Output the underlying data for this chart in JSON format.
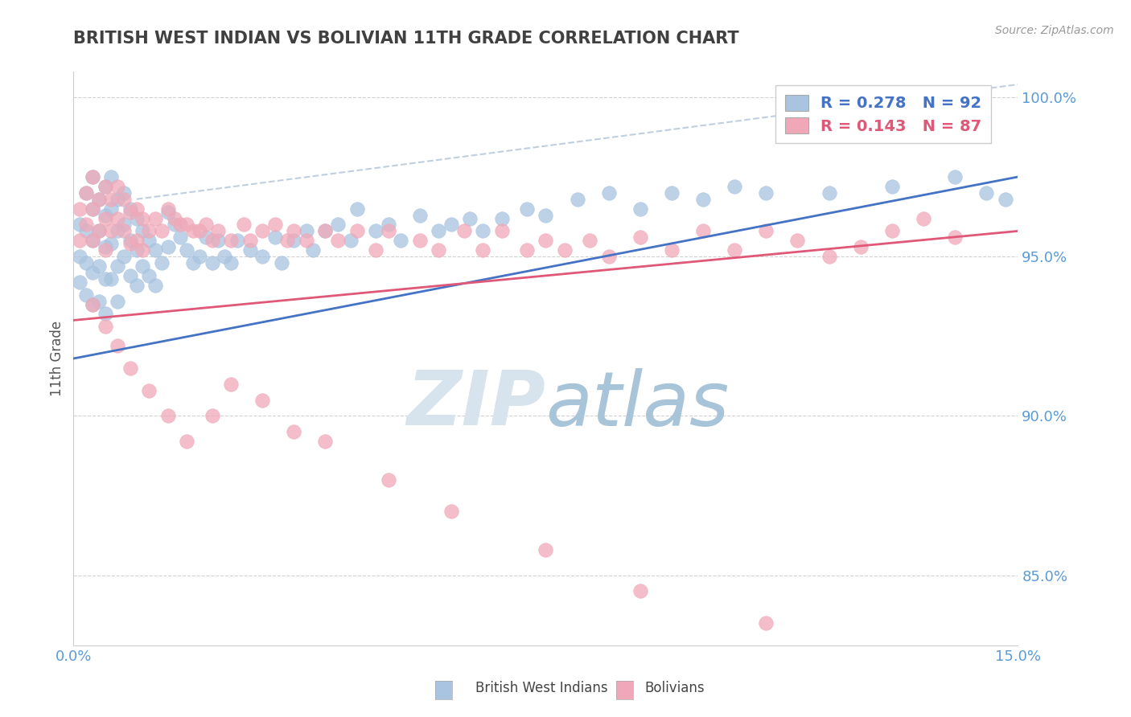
{
  "title": "BRITISH WEST INDIAN VS BOLIVIAN 11TH GRADE CORRELATION CHART",
  "source_text": "Source: ZipAtlas.com",
  "ylabel": "11th Grade",
  "xmin": 0.0,
  "xmax": 0.15,
  "ymin": 0.828,
  "ymax": 1.008,
  "yticks": [
    0.85,
    0.9,
    0.95,
    1.0
  ],
  "ytick_labels": [
    "85.0%",
    "90.0%",
    "95.0%",
    "100.0%"
  ],
  "xticks": [
    0.0,
    0.015,
    0.03,
    0.045,
    0.06,
    0.075,
    0.09,
    0.105,
    0.12,
    0.135,
    0.15
  ],
  "xtick_labels": [
    "0.0%",
    "",
    "",
    "",
    "",
    "",
    "",
    "",
    "",
    "",
    "15.0%"
  ],
  "blue_R": 0.278,
  "blue_N": 92,
  "pink_R": 0.143,
  "pink_N": 87,
  "blue_color": "#a8c4e0",
  "pink_color": "#f0a8b8",
  "blue_line_color": "#4472c4",
  "pink_line_color": "#e05878",
  "ref_line_color": "#b0c4d8",
  "axis_color": "#5b9bd5",
  "title_color": "#404040",
  "watermark_color": "#dce8f0",
  "legend_label_blue": "British West Indians",
  "legend_label_pink": "Bolivians",
  "blue_line_x": [
    0.0,
    0.15
  ],
  "blue_line_y": [
    0.918,
    0.975
  ],
  "pink_line_x": [
    0.0,
    0.15
  ],
  "pink_line_y": [
    0.93,
    0.958
  ],
  "ref_line_x": [
    0.01,
    0.15
  ],
  "ref_line_y": [
    0.968,
    1.004
  ],
  "blue_scatter_x": [
    0.001,
    0.001,
    0.001,
    0.002,
    0.002,
    0.002,
    0.002,
    0.003,
    0.003,
    0.003,
    0.003,
    0.003,
    0.004,
    0.004,
    0.004,
    0.004,
    0.005,
    0.005,
    0.005,
    0.005,
    0.005,
    0.006,
    0.006,
    0.006,
    0.006,
    0.007,
    0.007,
    0.007,
    0.007,
    0.008,
    0.008,
    0.008,
    0.009,
    0.009,
    0.009,
    0.01,
    0.01,
    0.01,
    0.011,
    0.011,
    0.012,
    0.012,
    0.013,
    0.013,
    0.014,
    0.015,
    0.015,
    0.016,
    0.017,
    0.018,
    0.019,
    0.02,
    0.021,
    0.022,
    0.023,
    0.024,
    0.025,
    0.026,
    0.028,
    0.03,
    0.032,
    0.033,
    0.035,
    0.037,
    0.038,
    0.04,
    0.042,
    0.044,
    0.045,
    0.048,
    0.05,
    0.052,
    0.055,
    0.058,
    0.06,
    0.063,
    0.065,
    0.068,
    0.072,
    0.075,
    0.08,
    0.085,
    0.09,
    0.095,
    0.1,
    0.105,
    0.11,
    0.12,
    0.13,
    0.14,
    0.145,
    0.148
  ],
  "blue_scatter_y": [
    0.96,
    0.95,
    0.942,
    0.97,
    0.958,
    0.948,
    0.938,
    0.975,
    0.965,
    0.955,
    0.945,
    0.935,
    0.968,
    0.958,
    0.947,
    0.936,
    0.972,
    0.963,
    0.953,
    0.943,
    0.932,
    0.975,
    0.965,
    0.954,
    0.943,
    0.968,
    0.958,
    0.947,
    0.936,
    0.97,
    0.96,
    0.95,
    0.965,
    0.955,
    0.944,
    0.962,
    0.952,
    0.941,
    0.958,
    0.947,
    0.955,
    0.944,
    0.952,
    0.941,
    0.948,
    0.964,
    0.953,
    0.96,
    0.956,
    0.952,
    0.948,
    0.95,
    0.956,
    0.948,
    0.955,
    0.95,
    0.948,
    0.955,
    0.952,
    0.95,
    0.956,
    0.948,
    0.955,
    0.958,
    0.952,
    0.958,
    0.96,
    0.955,
    0.965,
    0.958,
    0.96,
    0.955,
    0.963,
    0.958,
    0.96,
    0.962,
    0.958,
    0.962,
    0.965,
    0.963,
    0.968,
    0.97,
    0.965,
    0.97,
    0.968,
    0.972,
    0.97,
    0.97,
    0.972,
    0.975,
    0.97,
    0.968
  ],
  "pink_scatter_x": [
    0.001,
    0.001,
    0.002,
    0.002,
    0.003,
    0.003,
    0.003,
    0.004,
    0.004,
    0.005,
    0.005,
    0.005,
    0.006,
    0.006,
    0.007,
    0.007,
    0.008,
    0.008,
    0.009,
    0.009,
    0.01,
    0.01,
    0.011,
    0.011,
    0.012,
    0.013,
    0.014,
    0.015,
    0.016,
    0.017,
    0.018,
    0.019,
    0.02,
    0.021,
    0.022,
    0.023,
    0.025,
    0.027,
    0.028,
    0.03,
    0.032,
    0.034,
    0.035,
    0.037,
    0.04,
    0.042,
    0.045,
    0.048,
    0.05,
    0.055,
    0.058,
    0.062,
    0.065,
    0.068,
    0.072,
    0.075,
    0.078,
    0.082,
    0.085,
    0.09,
    0.095,
    0.1,
    0.105,
    0.11,
    0.115,
    0.12,
    0.125,
    0.13,
    0.135,
    0.14,
    0.003,
    0.005,
    0.007,
    0.009,
    0.012,
    0.015,
    0.018,
    0.022,
    0.025,
    0.03,
    0.035,
    0.04,
    0.05,
    0.06,
    0.075,
    0.09,
    0.11
  ],
  "pink_scatter_y": [
    0.965,
    0.955,
    0.97,
    0.96,
    0.975,
    0.965,
    0.955,
    0.968,
    0.958,
    0.972,
    0.962,
    0.952,
    0.968,
    0.958,
    0.972,
    0.962,
    0.968,
    0.958,
    0.964,
    0.954,
    0.965,
    0.955,
    0.962,
    0.952,
    0.958,
    0.962,
    0.958,
    0.965,
    0.962,
    0.96,
    0.96,
    0.958,
    0.958,
    0.96,
    0.955,
    0.958,
    0.955,
    0.96,
    0.955,
    0.958,
    0.96,
    0.955,
    0.958,
    0.955,
    0.958,
    0.955,
    0.958,
    0.952,
    0.958,
    0.955,
    0.952,
    0.958,
    0.952,
    0.958,
    0.952,
    0.955,
    0.952,
    0.955,
    0.95,
    0.956,
    0.952,
    0.958,
    0.952,
    0.958,
    0.955,
    0.95,
    0.953,
    0.958,
    0.962,
    0.956,
    0.935,
    0.928,
    0.922,
    0.915,
    0.908,
    0.9,
    0.892,
    0.9,
    0.91,
    0.905,
    0.895,
    0.892,
    0.88,
    0.87,
    0.858,
    0.845,
    0.835
  ]
}
